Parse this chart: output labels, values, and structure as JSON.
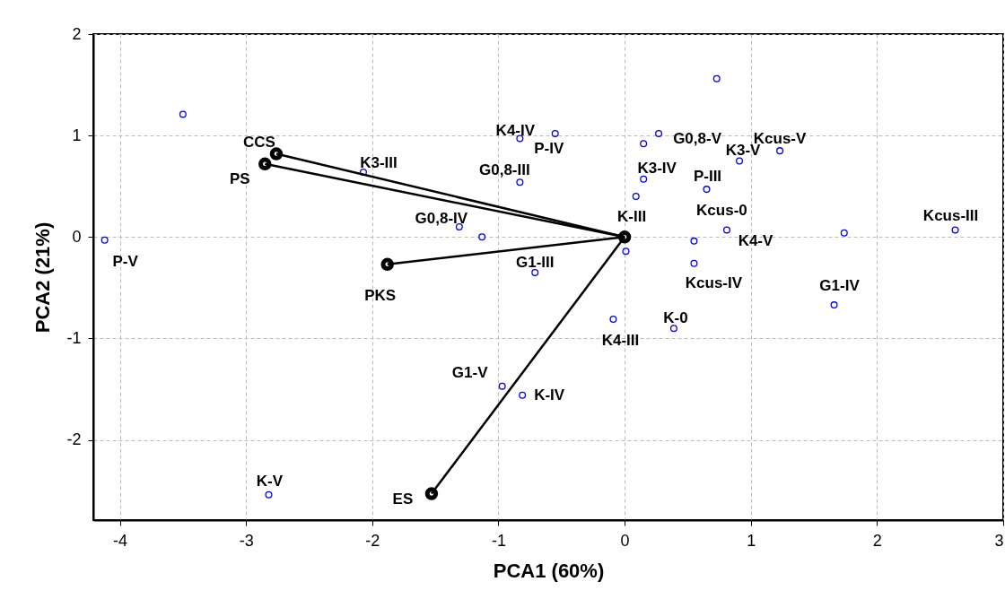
{
  "chart_data": {
    "type": "scatter",
    "xlabel": "PCA1 (60%)",
    "ylabel": "PCA2 (21%)",
    "xlim": [
      -4.21,
      3.0
    ],
    "xticks": [
      -4,
      -3,
      -2,
      -1,
      0,
      1,
      2,
      3
    ],
    "ylim": [
      -2.79,
      2.0
    ],
    "yticks": [
      -2,
      -1,
      0,
      1,
      2
    ],
    "grid": true,
    "series": [
      {
        "color": "#0000ff",
        "marker": "circle",
        "x": [
          -3.5,
          -4.12,
          -2.07,
          -0.83,
          -0.55,
          -0.83,
          -1.31,
          -1.13,
          -0.71,
          0.01,
          0.09,
          0.15,
          0.27,
          0.73,
          0.15,
          0.65,
          0.91,
          1.23,
          0.81,
          0.55,
          0.55,
          1.74,
          2.62,
          1.66,
          0.39,
          -0.09,
          -0.81,
          -0.97,
          -2.82
        ],
        "values": [
          1.21,
          -0.03,
          0.64,
          0.97,
          1.02,
          0.54,
          0.1,
          0.0,
          -0.35,
          -0.14,
          0.4,
          0.92,
          1.02,
          1.56,
          0.57,
          0.47,
          0.75,
          0.85,
          0.07,
          -0.04,
          -0.26,
          0.04,
          0.07,
          -0.67,
          -0.9,
          -0.81,
          -1.56,
          -1.47,
          -2.54
        ],
        "value_labels": [
          null,
          "P-V",
          "K3-III",
          "K4-IV",
          "P-IV",
          "G0,8-III",
          "G0,8-IV",
          null,
          "G1-III",
          null,
          null,
          null,
          "G0,8-V",
          null,
          "K3-IV",
          "P-III",
          "K3-V",
          "Kcus-V",
          "K4-V",
          "Kcus-0",
          "Kcus-IV",
          null,
          "Kcus-III",
          "G1-IV",
          "K-0",
          "K4-III",
          "K-IV",
          "G1-V",
          "K-V"
        ]
      },
      {
        "color": "#000000",
        "marker": "circle",
        "x": [
          -2.76,
          -2.85,
          -1.88,
          -1.53,
          0.0
        ],
        "values": [
          0.82,
          0.72,
          -0.27,
          -2.53,
          0.0
        ],
        "value_labels": [
          "CCS",
          "PS",
          "PKS",
          "ES",
          "K-III"
        ]
      },
      {
        "type": "line",
        "marker": "none",
        "color": "#000000",
        "x": [
          0.0,
          -2.76
        ],
        "values": [
          0.0,
          0.82
        ]
      },
      {
        "type": "line",
        "marker": "none",
        "color": "#000000",
        "x": [
          0.0,
          -2.85
        ],
        "values": [
          0.0,
          0.72
        ]
      },
      {
        "type": "line",
        "marker": "none",
        "color": "#000000",
        "x": [
          0.0,
          -1.88
        ],
        "values": [
          0.0,
          -0.27
        ]
      },
      {
        "type": "line",
        "marker": "none",
        "color": "#000000",
        "x": [
          0.0,
          -1.53
        ],
        "values": [
          0.0,
          -2.53
        ]
      }
    ]
  }
}
